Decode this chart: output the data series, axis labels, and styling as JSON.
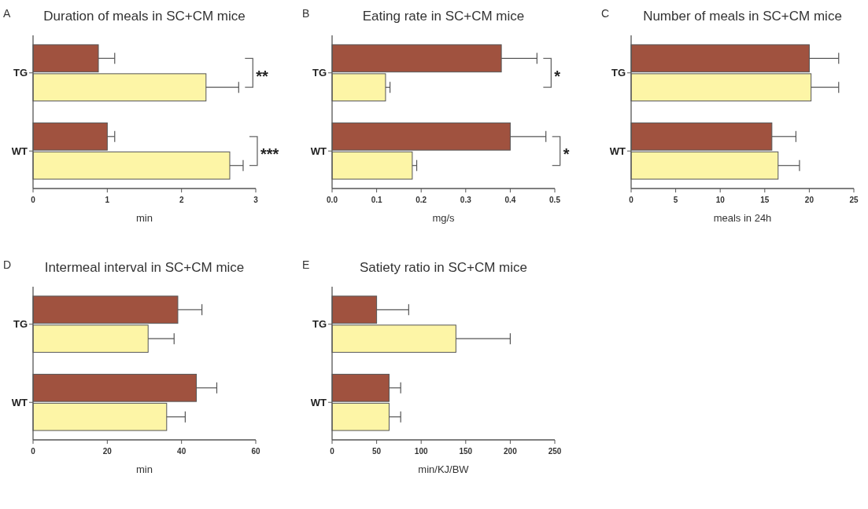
{
  "chart_data": [
    {
      "type": "bar",
      "orientation": "horizontal",
      "title": "Duration of meals in SC+CM mice",
      "xlabel": "min",
      "categories": [
        "TG",
        "WT"
      ],
      "xlim": [
        0,
        3
      ],
      "xticks": [
        0,
        1,
        2,
        3
      ],
      "series": [
        {
          "color": "#a0523f",
          "values": [
            0.88,
            1.0
          ],
          "errors": [
            0.22,
            0.1
          ]
        },
        {
          "color": "#fdf5a6",
          "values": [
            2.33,
            2.65
          ],
          "errors": [
            0.44,
            0.18
          ]
        }
      ],
      "annotations": [
        "A",
        "**",
        "***"
      ]
    },
    {
      "type": "bar",
      "orientation": "horizontal",
      "title": "Eating rate in SC+CM mice",
      "xlabel": "mg/s",
      "categories": [
        "TG",
        "WT"
      ],
      "xlim": [
        0,
        0.5
      ],
      "xticks": [
        {
          "value": 0,
          "label": "0.0"
        },
        0.1,
        0.2,
        0.3,
        0.4,
        0.5
      ],
      "series": [
        {
          "color": "#a0523f",
          "values": [
            0.38,
            0.4
          ],
          "errors": [
            0.08,
            0.08
          ]
        },
        {
          "color": "#fdf5a6",
          "values": [
            0.12,
            0.18
          ],
          "errors": [
            0.01,
            0.01
          ]
        }
      ],
      "annotations": [
        "B",
        "*",
        "*"
      ]
    },
    {
      "type": "bar",
      "orientation": "horizontal",
      "title": "Number of meals in SC+CM mice",
      "xlabel": "meals in 24h",
      "categories": [
        "TG",
        "WT"
      ],
      "xlim": [
        0,
        25
      ],
      "xticks": [
        0,
        5,
        10,
        15,
        20,
        25
      ],
      "series": [
        {
          "color": "#a0523f",
          "values": [
            20,
            15.8
          ],
          "errors": [
            3.3,
            2.7
          ]
        },
        {
          "color": "#fdf5a6",
          "values": [
            20.2,
            16.5
          ],
          "errors": [
            3.1,
            2.4
          ]
        }
      ],
      "annotations": [
        "C"
      ]
    },
    {
      "type": "bar",
      "orientation": "horizontal",
      "title": "Intermeal interval in SC+CM mice",
      "xlabel": "min",
      "categories": [
        "TG",
        "WT"
      ],
      "xlim": [
        0,
        60
      ],
      "xticks": [
        0,
        20,
        40,
        60
      ],
      "series": [
        {
          "color": "#a0523f",
          "values": [
            39,
            44
          ],
          "errors": [
            6.5,
            5.5
          ]
        },
        {
          "color": "#fdf5a6",
          "values": [
            31,
            36
          ],
          "errors": [
            7,
            5
          ]
        }
      ],
      "annotations": [
        "D"
      ]
    },
    {
      "type": "bar",
      "orientation": "horizontal",
      "title": "Satiety ratio in SC+CM mice",
      "xlabel": "min/KJ/BW",
      "categories": [
        "TG",
        "WT"
      ],
      "xlim": [
        0,
        250
      ],
      "xticks": [
        0,
        50,
        100,
        150,
        200,
        250
      ],
      "series": [
        {
          "color": "#a0523f",
          "values": [
            50,
            64
          ],
          "errors": [
            36,
            13
          ]
        },
        {
          "color": "#fdf5a6",
          "values": [
            139,
            64
          ],
          "errors": [
            61,
            13
          ]
        }
      ],
      "annotations": [
        "E"
      ]
    }
  ]
}
